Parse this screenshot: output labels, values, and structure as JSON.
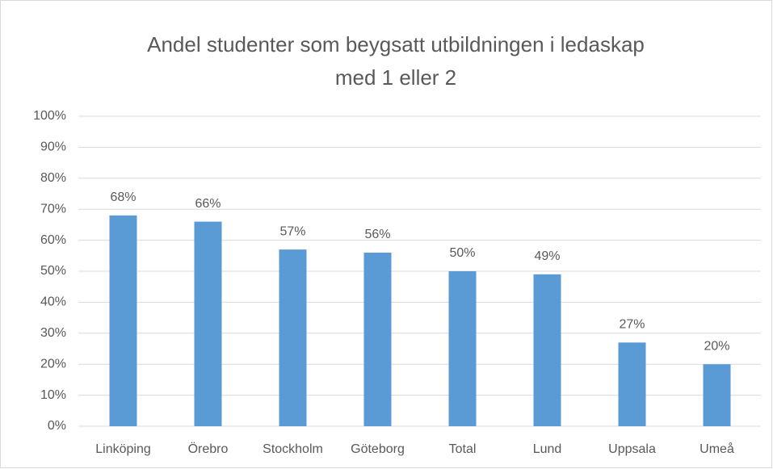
{
  "chart_data": {
    "type": "bar",
    "title": [
      "Andel studenter som beygsatt utbildningen i ledaskap",
      "med 1 eller 2"
    ],
    "categories": [
      "Linköping",
      "Örebro",
      "Stockholm",
      "Göteborg",
      "Total",
      "Lund",
      "Uppsala",
      "Umeå"
    ],
    "values": [
      68,
      66,
      57,
      56,
      50,
      49,
      27,
      20
    ],
    "value_labels": [
      "68%",
      "66%",
      "57%",
      "56%",
      "50%",
      "49%",
      "27%",
      "20%"
    ],
    "color": "#5b9bd5",
    "ylim": [
      0,
      100
    ],
    "yticks": [
      {
        "value": 0,
        "label": "0%"
      },
      {
        "value": 10,
        "label": "10%"
      },
      {
        "value": 20,
        "label": "20%"
      },
      {
        "value": 30,
        "label": "30%"
      },
      {
        "value": 40,
        "label": "40%"
      },
      {
        "value": 50,
        "label": "50%"
      },
      {
        "value": 60,
        "label": "60%"
      },
      {
        "value": 70,
        "label": "70%"
      },
      {
        "value": 80,
        "label": "80%"
      },
      {
        "value": 90,
        "label": "90%"
      },
      {
        "value": 100,
        "label": "100%"
      }
    ],
    "grid": true
  }
}
